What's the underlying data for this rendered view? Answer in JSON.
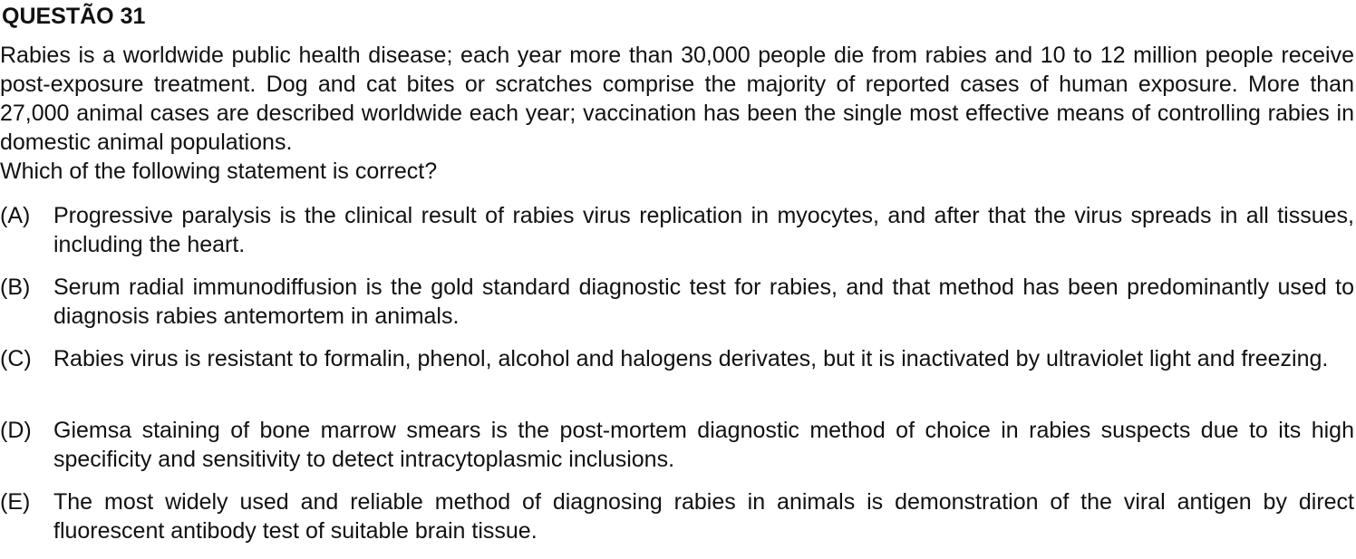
{
  "question": {
    "title": "QUESTÃO 31",
    "stem": "Rabies is a worldwide public health disease; each year more than 30,000 people die from rabies and 10 to 12 million people receive post-exposure treatment. Dog and cat bites or scratches comprise the majority of reported cases of human exposure. More than 27,000 animal cases are described worldwide each year; vaccination has been the single most effective means of controlling rabies in domestic animal populations.",
    "prompt": "Which of the following statement is correct?",
    "options": [
      {
        "letter": "(A)",
        "text": "Progressive paralysis is the clinical result of rabies virus replication in myocytes, and after that the virus spreads in all tissues, including the heart."
      },
      {
        "letter": "(B)",
        "text": "Serum radial immunodiffusion is the gold standard diagnostic test for rabies, and that method has been predominantly used to diagnosis rabies antemortem in animals."
      },
      {
        "letter": "(C)",
        "text": "Rabies virus is resistant to formalin, phenol, alcohol and halogens derivates, but it is inactivated by ultraviolet light and freezing."
      },
      {
        "letter": "(D)",
        "text": "Giemsa staining of bone marrow smears is the post-mortem diagnostic method of choice in rabies suspects due to its high specificity and sensitivity to detect intracytoplasmic inclusions."
      },
      {
        "letter": "(E)",
        "text": "The most widely used and reliable method of diagnosing rabies in animals is demonstration of the viral antigen by direct fluorescent antibody test of suitable brain tissue."
      }
    ]
  }
}
